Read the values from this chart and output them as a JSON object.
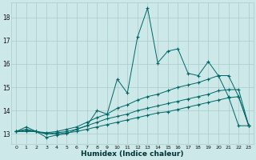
{
  "xlabel": "Humidex (Indice chaleur)",
  "bg_color": "#cce8e8",
  "grid_color": "#aacccc",
  "line_color": "#006666",
  "xlim": [
    -0.5,
    23.5
  ],
  "ylim": [
    12.55,
    18.65
  ],
  "xticks": [
    0,
    1,
    2,
    3,
    4,
    5,
    6,
    7,
    8,
    9,
    10,
    11,
    12,
    13,
    14,
    15,
    16,
    17,
    18,
    19,
    20,
    21,
    22,
    23
  ],
  "yticks": [
    13,
    14,
    15,
    16,
    17,
    18
  ],
  "curve1_x": [
    0,
    1,
    2,
    3,
    4,
    5,
    6,
    7,
    8,
    9,
    10,
    11,
    12,
    13,
    14,
    15,
    16,
    17,
    18,
    19,
    20,
    21,
    22,
    23
  ],
  "curve1_y": [
    13.1,
    13.3,
    13.1,
    12.85,
    12.95,
    13.0,
    13.2,
    13.35,
    14.0,
    13.85,
    15.35,
    14.75,
    17.15,
    18.4,
    16.05,
    16.55,
    16.65,
    15.6,
    15.5,
    16.1,
    15.5,
    14.6,
    13.35,
    13.35
  ],
  "curve2_x": [
    0,
    1,
    2,
    3,
    4,
    5,
    6,
    7,
    8,
    9,
    10,
    11,
    12,
    13,
    14,
    15,
    16,
    17,
    18,
    19,
    20,
    21,
    22,
    23
  ],
  "curve2_y": [
    13.1,
    13.2,
    13.1,
    13.05,
    13.1,
    13.2,
    13.3,
    13.5,
    13.7,
    13.85,
    14.1,
    14.25,
    14.45,
    14.6,
    14.7,
    14.85,
    15.0,
    15.1,
    15.2,
    15.35,
    15.5,
    15.5,
    14.6,
    13.35
  ],
  "curve3_x": [
    0,
    1,
    2,
    3,
    4,
    5,
    6,
    7,
    8,
    9,
    10,
    11,
    12,
    13,
    14,
    15,
    16,
    17,
    18,
    19,
    20,
    21,
    22,
    23
  ],
  "curve3_y": [
    13.1,
    13.15,
    13.1,
    13.0,
    13.05,
    13.1,
    13.2,
    13.35,
    13.5,
    13.65,
    13.75,
    13.85,
    14.0,
    14.1,
    14.2,
    14.3,
    14.4,
    14.5,
    14.6,
    14.7,
    14.85,
    14.9,
    14.9,
    13.35
  ],
  "curve4_x": [
    0,
    1,
    2,
    3,
    4,
    5,
    6,
    7,
    8,
    9,
    10,
    11,
    12,
    13,
    14,
    15,
    16,
    17,
    18,
    19,
    20,
    21,
    22,
    23
  ],
  "curve4_y": [
    13.1,
    13.1,
    13.1,
    13.0,
    13.0,
    13.05,
    13.1,
    13.2,
    13.3,
    13.4,
    13.5,
    13.6,
    13.7,
    13.8,
    13.9,
    13.95,
    14.05,
    14.15,
    14.25,
    14.35,
    14.45,
    14.55,
    14.6,
    13.35
  ]
}
